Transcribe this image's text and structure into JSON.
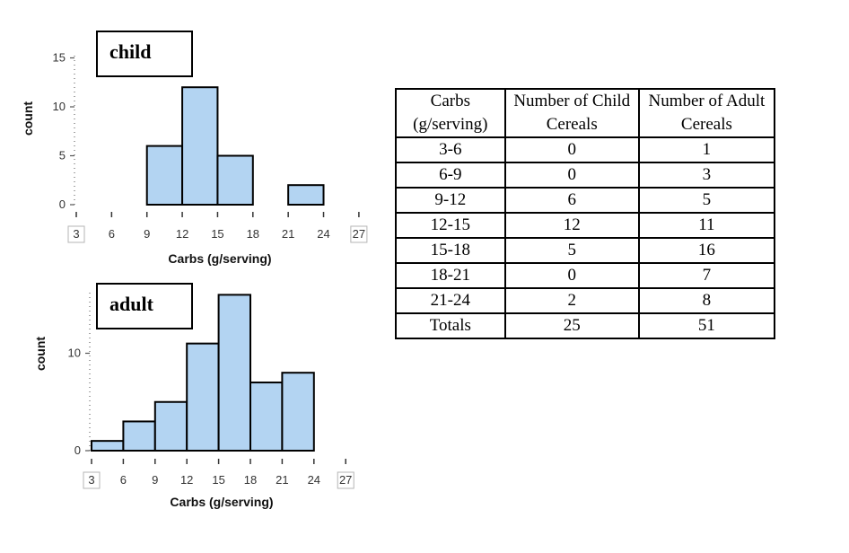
{
  "chart_data": [
    {
      "type": "bar",
      "title": "child",
      "xlabel": "Carbs (g/serving)",
      "ylabel": "count",
      "bins": [
        [
          9,
          12
        ],
        [
          12,
          15
        ],
        [
          15,
          18
        ],
        [
          21,
          24
        ]
      ],
      "values": [
        6,
        12,
        5,
        2
      ],
      "xlim": [
        3,
        27
      ],
      "ylim": [
        0,
        15
      ],
      "xticks": [
        3,
        6,
        9,
        12,
        15,
        18,
        21,
        24,
        27
      ],
      "yticks": [
        0,
        5,
        10,
        15
      ],
      "color": "#b3d4f2"
    },
    {
      "type": "bar",
      "title": "adult",
      "xlabel": "Carbs (g/serving)",
      "ylabel": "count",
      "bins": [
        [
          3,
          6
        ],
        [
          6,
          9
        ],
        [
          9,
          12
        ],
        [
          12,
          15
        ],
        [
          15,
          18
        ],
        [
          18,
          21
        ],
        [
          21,
          24
        ]
      ],
      "values": [
        1,
        3,
        5,
        11,
        16,
        7,
        8
      ],
      "xlim": [
        3,
        27
      ],
      "ylim": [
        0,
        16
      ],
      "xticks": [
        3,
        6,
        9,
        12,
        15,
        18,
        21,
        24,
        27
      ],
      "yticks": [
        0,
        10
      ],
      "color": "#b3d4f2"
    },
    {
      "type": "table",
      "headers": [
        "Carbs (g/serving)",
        "Number of Child Cereals",
        "Number of Adult Cereals"
      ],
      "rows": [
        [
          "3-6",
          "0",
          "1"
        ],
        [
          "6-9",
          "0",
          "3"
        ],
        [
          "9-12",
          "6",
          "5"
        ],
        [
          "12-15",
          "12",
          "11"
        ],
        [
          "15-18",
          "5",
          "16"
        ],
        [
          "18-21",
          "0",
          "7"
        ],
        [
          "21-24",
          "2",
          "8"
        ],
        [
          "Totals",
          "25",
          "51"
        ]
      ]
    }
  ]
}
